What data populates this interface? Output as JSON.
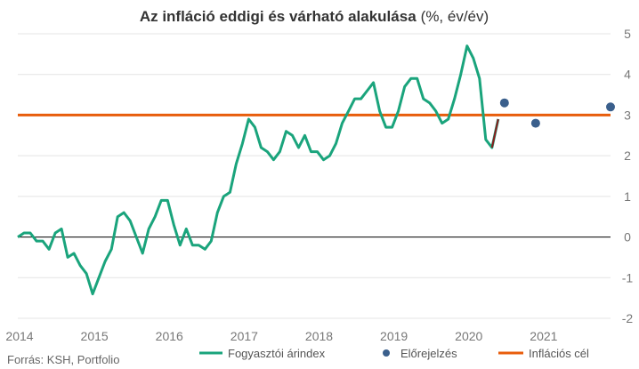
{
  "chart_data": {
    "type": "line",
    "title": "Az infláció eddigi és várható alakulása",
    "title_unit": "(%, év/év)",
    "source": "Forrás: KSH, Portfolio",
    "x_ticks": [
      "2014",
      "2015",
      "2016",
      "2017",
      "2018",
      "2019",
      "2020",
      "2021"
    ],
    "y_ticks": [
      "-2",
      "-1",
      "0",
      "1",
      "2",
      "3",
      "4",
      "5"
    ],
    "ylim": [
      -2,
      5
    ],
    "xlim": [
      "2014-01",
      "2021-12"
    ],
    "grid": true,
    "legend_position": "bottom",
    "colors": {
      "cpi": "#1aa47c",
      "forecast": "#3a5f8c",
      "target": "#e85d0c",
      "forecast_link": "#8b1d1d",
      "zero_line": "#000000",
      "grid": "#e4e4e4"
    },
    "series": [
      {
        "name": "Fogyasztói árindex",
        "x": [
          "2014-01",
          "2014-02",
          "2014-03",
          "2014-04",
          "2014-05",
          "2014-06",
          "2014-07",
          "2014-08",
          "2014-09",
          "2014-10",
          "2014-11",
          "2014-12",
          "2015-01",
          "2015-02",
          "2015-03",
          "2015-04",
          "2015-05",
          "2015-06",
          "2015-07",
          "2015-08",
          "2015-09",
          "2015-10",
          "2015-11",
          "2015-12",
          "2016-01",
          "2016-02",
          "2016-03",
          "2016-04",
          "2016-05",
          "2016-06",
          "2016-07",
          "2016-08",
          "2016-09",
          "2016-10",
          "2016-11",
          "2016-12",
          "2017-01",
          "2017-02",
          "2017-03",
          "2017-04",
          "2017-05",
          "2017-06",
          "2017-07",
          "2017-08",
          "2017-09",
          "2017-10",
          "2017-11",
          "2017-12",
          "2018-01",
          "2018-02",
          "2018-03",
          "2018-04",
          "2018-05",
          "2018-06",
          "2018-07",
          "2018-08",
          "2018-09",
          "2018-10",
          "2018-11",
          "2018-12",
          "2019-01",
          "2019-02",
          "2019-03",
          "2019-04",
          "2019-05",
          "2019-06",
          "2019-07",
          "2019-08",
          "2019-09",
          "2019-10",
          "2019-11",
          "2019-12",
          "2020-01",
          "2020-02",
          "2020-03",
          "2020-04",
          "2020-05",
          "2020-06"
        ],
        "values": [
          0.0,
          0.1,
          0.1,
          -0.1,
          -0.1,
          -0.3,
          0.1,
          0.2,
          -0.5,
          -0.4,
          -0.7,
          -0.9,
          -1.4,
          -1.0,
          -0.6,
          -0.3,
          0.5,
          0.6,
          0.4,
          0.0,
          -0.4,
          0.2,
          0.5,
          0.9,
          0.9,
          0.3,
          -0.2,
          0.2,
          -0.2,
          -0.2,
          -0.3,
          -0.1,
          0.6,
          1.0,
          1.1,
          1.8,
          2.3,
          2.9,
          2.7,
          2.2,
          2.1,
          1.9,
          2.1,
          2.6,
          2.5,
          2.2,
          2.5,
          2.1,
          2.1,
          1.9,
          2.0,
          2.3,
          2.8,
          3.1,
          3.4,
          3.4,
          3.6,
          3.8,
          3.1,
          2.7,
          2.7,
          3.1,
          3.7,
          3.9,
          3.9,
          3.4,
          3.3,
          3.1,
          2.8,
          2.9,
          3.4,
          4.0,
          4.7,
          4.4,
          3.9,
          2.4,
          2.2,
          2.9
        ]
      },
      {
        "name": "Előrejelzés",
        "marker": "dot",
        "x": [
          "2020-07",
          "2020-12",
          "2021-12"
        ],
        "values": [
          3.3,
          2.8,
          3.2
        ]
      },
      {
        "name": "Inflációs cél",
        "x": [
          "2014-01",
          "2021-12"
        ],
        "values": [
          3.0,
          3.0
        ]
      }
    ],
    "forecast_link": {
      "x": [
        "2020-05",
        "2020-06"
      ],
      "values": [
        2.2,
        2.9
      ]
    }
  }
}
